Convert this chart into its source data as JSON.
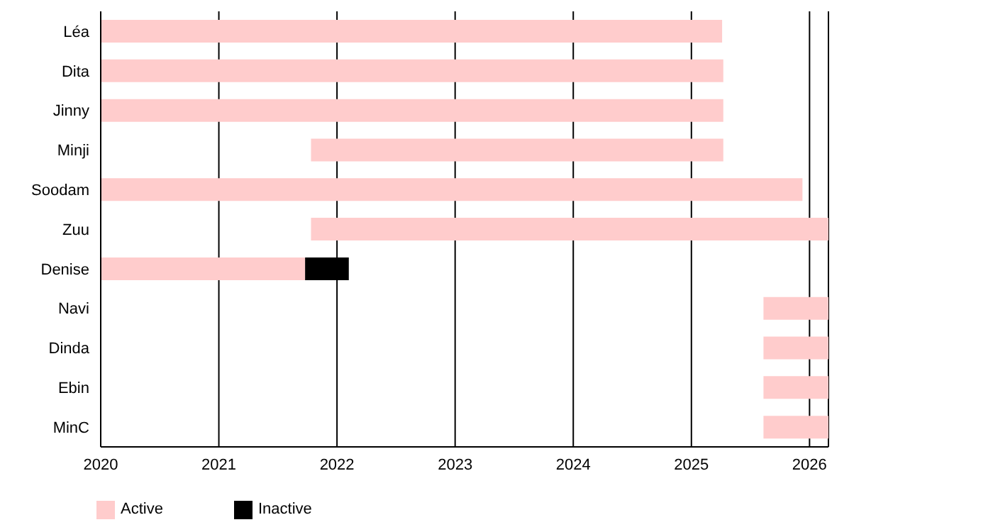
{
  "chart_data": {
    "type": "bar",
    "orientation": "horizontal",
    "categories": [
      "Léa",
      "Dita",
      "Jinny",
      "Minji",
      "Soodam",
      "Zuu",
      "Denise",
      "Navi",
      "Dinda",
      "Ebin",
      "MinC"
    ],
    "series": [
      {
        "name": "Active",
        "color": "#ffcccc",
        "base": [
          2020,
          2020,
          2020,
          2021.78,
          2020,
          2021.78,
          2020,
          2025.61,
          2025.61,
          2025.61,
          2025.61
        ],
        "values": [
          5.26,
          5.27,
          5.27,
          3.49,
          5.94,
          4.38,
          1.73,
          0.55,
          0.55,
          0.55,
          0.55
        ]
      },
      {
        "name": "Inactive",
        "color": "#000000",
        "base": [
          null,
          null,
          null,
          null,
          null,
          null,
          2021.73,
          null,
          null,
          null,
          null
        ],
        "values": [
          null,
          null,
          null,
          null,
          null,
          null,
          0.37,
          null,
          null,
          null,
          null
        ]
      }
    ],
    "xlim": [
      2020,
      2026.16
    ],
    "xticks": [
      2020,
      2021,
      2022,
      2023,
      2024,
      2025,
      2026
    ],
    "grid": "x",
    "legend": "bottom left"
  }
}
